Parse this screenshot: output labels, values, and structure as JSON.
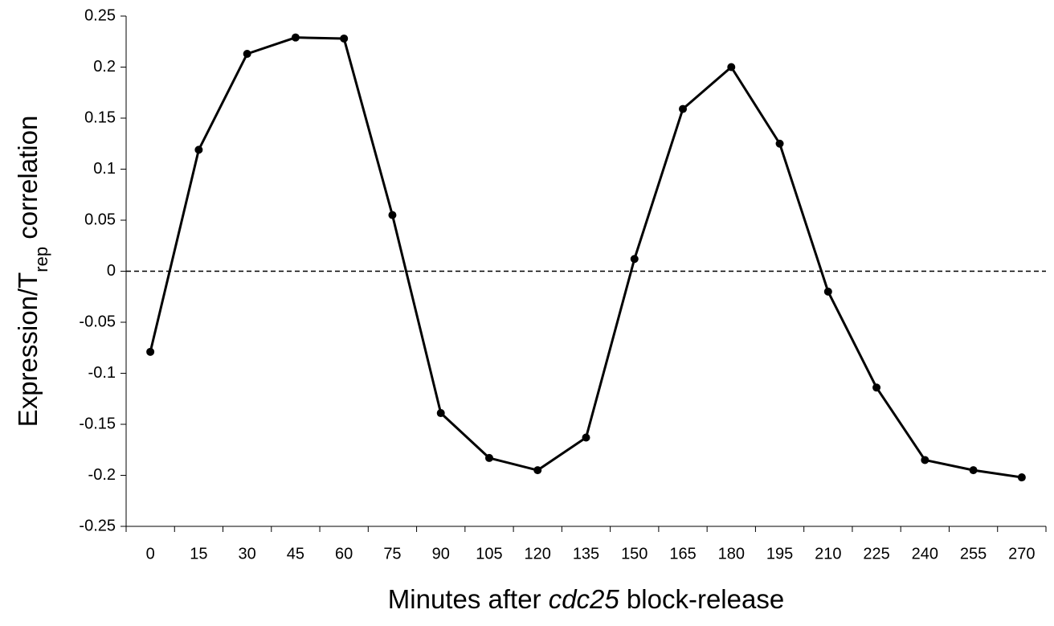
{
  "chart_data": {
    "type": "line",
    "y_label": [
      {
        "text": "Expression/T"
      },
      {
        "text": "rep",
        "sub": true
      },
      {
        "text": " correlation"
      }
    ],
    "x_label": [
      {
        "text": "Minutes after "
      },
      {
        "text": "cdc25",
        "italic": true
      },
      {
        "text": " block-release"
      }
    ],
    "categories": [
      "0",
      "15",
      "30",
      "45",
      "60",
      "75",
      "90",
      "105",
      "120",
      "135",
      "150",
      "165",
      "180",
      "195",
      "210",
      "225",
      "240",
      "255",
      "270"
    ],
    "series": [
      {
        "color": "#000000",
        "values": [
          -0.079,
          0.119,
          0.213,
          0.229,
          0.228,
          0.055,
          -0.139,
          -0.183,
          -0.195,
          -0.163,
          0.012,
          0.159,
          0.2,
          0.125,
          -0.02,
          -0.114,
          -0.185,
          -0.195,
          -0.202
        ]
      }
    ],
    "ylim": [
      -0.25,
      0.25
    ],
    "yticks": [
      -0.25,
      -0.2,
      -0.15,
      -0.1,
      -0.05,
      0,
      0.05,
      0.1,
      0.15,
      0.2,
      0.25
    ],
    "zero_line": true,
    "grid": false
  }
}
